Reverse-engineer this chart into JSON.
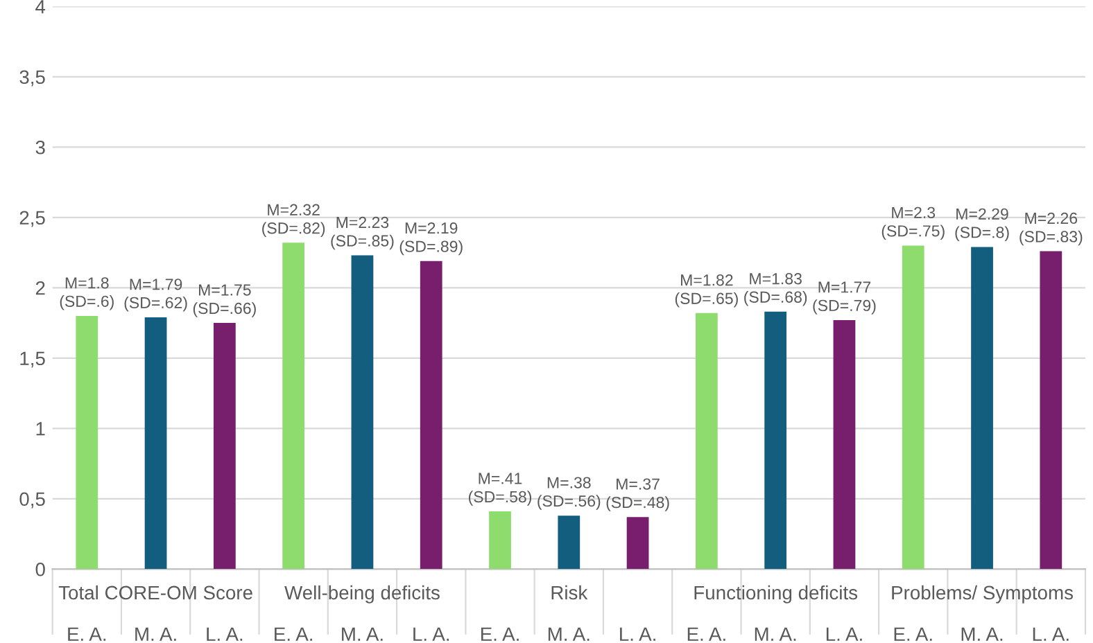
{
  "chart_data": {
    "type": "bar",
    "categories": [
      "E. A.",
      "M. A.",
      "L. A.",
      "E. A.",
      "M. A.",
      "L. A.",
      "E. A.",
      "M. A.",
      "L. A.",
      "E. A.",
      "M. A.",
      "L. A.",
      "E. A.",
      "M. A.",
      "L. A."
    ],
    "values": [
      1.8,
      1.79,
      1.75,
      2.32,
      2.23,
      2.19,
      0.41,
      0.38,
      0.37,
      1.82,
      1.83,
      1.77,
      2.3,
      2.29,
      2.26
    ],
    "colors": [
      "#8fdc6e",
      "#135e7f",
      "#771f6c",
      "#8fdc6e",
      "#135e7f",
      "#771f6c",
      "#8fdc6e",
      "#135e7f",
      "#771f6c",
      "#8fdc6e",
      "#135e7f",
      "#771f6c",
      "#8fdc6e",
      "#135e7f",
      "#771f6c"
    ],
    "value_labels": [
      "M=1.8\n(SD=.6)",
      "M=1.79\n(SD=.62)",
      "M=1.75\n(SD=.66)",
      "M=2.32\n(SD=.82)",
      "M=2.23\n(SD=.85)",
      "M=2.19\n(SD=.89)",
      "M=.41\n(SD=.58)",
      "M=.38\n(SD=.56)",
      "M=.37\n(SD=.48)",
      "M=1.82\n(SD=.65)",
      "M=1.83\n(SD=.68)",
      "M=1.77\n(SD=.79)",
      "M=2.3\n(SD=.75)",
      "M=2.29\n(SD=.8)",
      "M=2.26\n(SD=.83)"
    ],
    "annotations": [
      "Total CORE-OM Score",
      "Well-being deficits",
      "Risk",
      "Functioning deficits",
      "Problems/ Symptoms"
    ],
    "ylim": [
      0,
      4
    ],
    "yticks": [
      0,
      {
        "value": 0.5,
        "label": "0,5"
      },
      1,
      {
        "value": 1.5,
        "label": "1,5"
      },
      2,
      {
        "value": 2.5,
        "label": "2,5"
      },
      3,
      {
        "value": 3.5,
        "label": "3,5"
      },
      4
    ],
    "grid": "y",
    "legend": false
  }
}
